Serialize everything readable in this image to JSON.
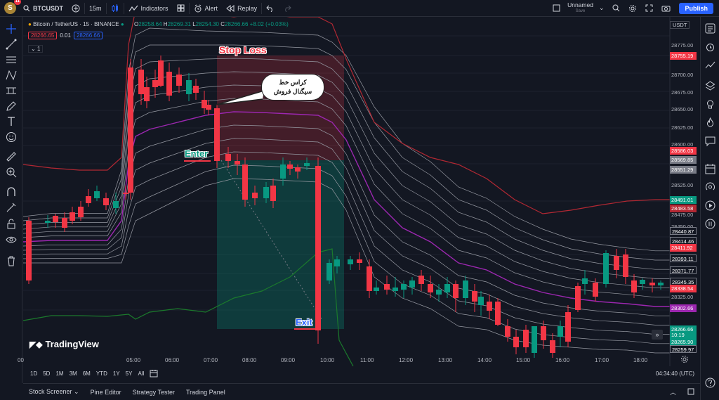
{
  "topbar": {
    "avatar": "S",
    "badge": "11",
    "symbol": "BTCUSDT",
    "interval": "15m",
    "indicators": "Indicators",
    "alert": "Alert",
    "replay": "Replay",
    "layout_name": "Unnamed",
    "layout_status": "Save",
    "publish": "Publish"
  },
  "legend": {
    "title": "Bitcoin / TetherUS · 15 · BINANCE",
    "o_label": "O",
    "o": "28258.64",
    "h_label": "H",
    "h": "28269.31",
    "l_label": "L",
    "l": "28254.30",
    "c_label": "C",
    "c": "28266.66",
    "change": "+8.02 (+0.03%)",
    "bid": "28266.65",
    "spread": "0.01",
    "ask": "28266.66",
    "collapse": "1"
  },
  "annotations": {
    "stop_loss": "Stop Loss",
    "enter": "Enter",
    "exit": "Exit",
    "bubble_line1": "کراس خط",
    "bubble_line2": "سیگنال فروش"
  },
  "watermark": "TradingView",
  "price_axis": {
    "currency": "USDT",
    "ticks": [
      "28775.00",
      "28725.00",
      "28700.00",
      "28675.00",
      "28650.00",
      "28625.00",
      "28600.00",
      "28525.00",
      "28475.00",
      "28450.00",
      "28325.00"
    ]
  },
  "price_labels": [
    {
      "text": "28755.19",
      "color": "#f23645"
    },
    {
      "text": "28586.03",
      "color": "#f23645"
    },
    {
      "text": "28569.85",
      "color": "#787b86"
    },
    {
      "text": "28551.29",
      "color": "#787b86"
    },
    {
      "text": "28491.01",
      "color": "#089981"
    },
    {
      "text": "28483.58",
      "color": "#b22833"
    },
    {
      "text": "28440.87",
      "color": "#131722"
    },
    {
      "text": "28414.46",
      "color": "#131722"
    },
    {
      "text": "28411.92",
      "color": "#f23645"
    },
    {
      "text": "28393.11",
      "color": "#131722"
    },
    {
      "text": "28371.77",
      "color": "#131722"
    },
    {
      "text": "28345.35",
      "color": "#131722"
    },
    {
      "text": "28338.54",
      "color": "#f23645"
    },
    {
      "text": "28302.66",
      "color": "#9c27b0"
    },
    {
      "text": "28266.66",
      "color": "#089981"
    },
    {
      "text": "10:19",
      "color": "#089981"
    },
    {
      "text": "28265.90",
      "color": "#089981"
    },
    {
      "text": "28259.97",
      "color": "#131722"
    }
  ],
  "time_axis": [
    "00",
    "05:00",
    "06:00",
    "07:00",
    "08:00",
    "09:00",
    "10:00",
    "11:00",
    "12:00",
    "13:00",
    "14:00",
    "15:00",
    "16:00",
    "17:00",
    "18:00"
  ],
  "ranges": [
    "1D",
    "5D",
    "1M",
    "3M",
    "6M",
    "YTD",
    "1Y",
    "5Y",
    "All"
  ],
  "clock": "04:34:40 (UTC)",
  "bottom_tabs": [
    "Stock Screener",
    "Pine Editor",
    "Strategy Tester",
    "Trading Panel"
  ],
  "colors": {
    "up": "#089981",
    "down": "#f23645",
    "ma": "#9c27b0",
    "band_top": "#b22833",
    "band_bottom": "#1b7a2c"
  }
}
